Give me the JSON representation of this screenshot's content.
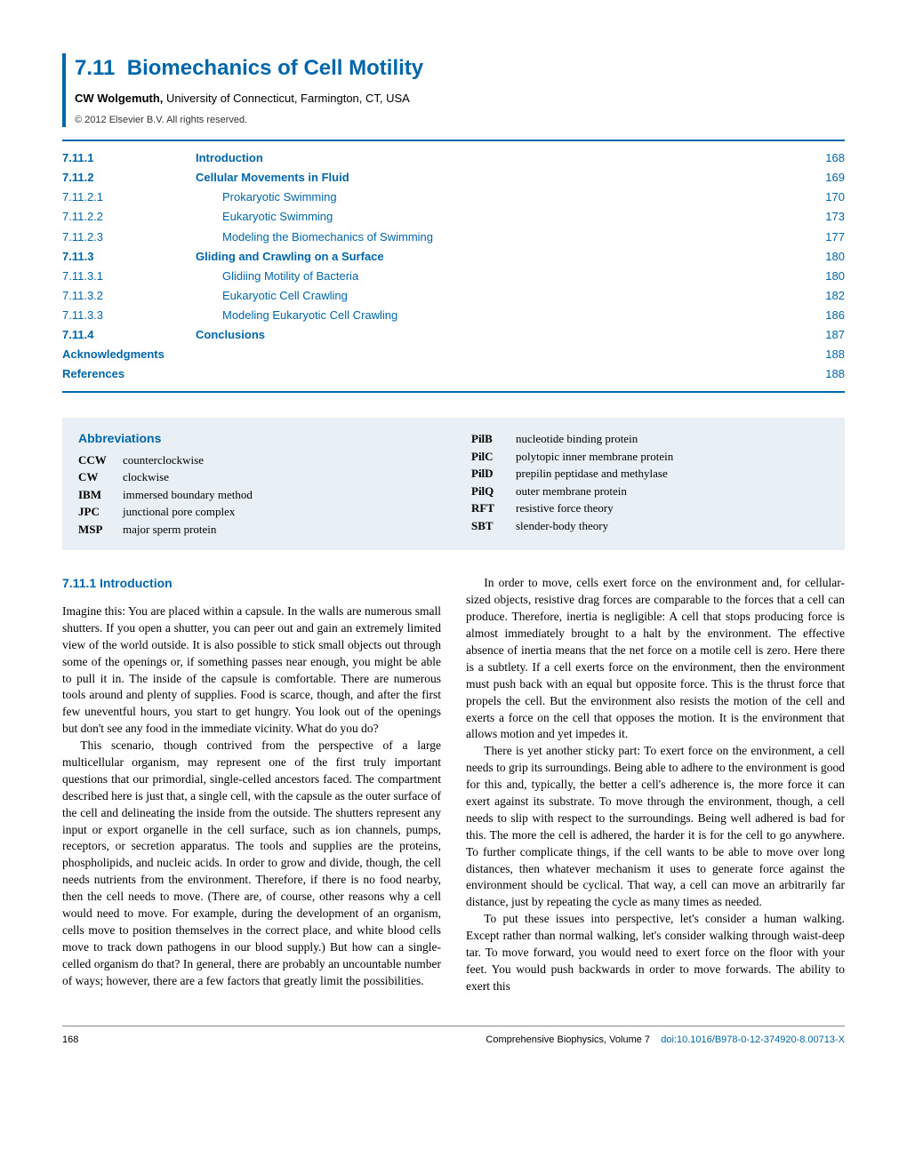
{
  "chapter": {
    "number": "7.11",
    "title": "Biomechanics of Cell Motility",
    "author_name": "CW Wolgemuth,",
    "author_affil": " University of Connecticut, Farmington, CT, USA",
    "copyright": "© 2012 Elsevier B.V. All rights reserved."
  },
  "toc": [
    {
      "num": "7.11.1",
      "text": "Introduction",
      "page": "168",
      "bold": true,
      "indent": 0
    },
    {
      "num": "7.11.2",
      "text": "Cellular Movements in Fluid",
      "page": "169",
      "bold": true,
      "indent": 0
    },
    {
      "num": "7.11.2.1",
      "text": "Prokaryotic Swimming",
      "page": "170",
      "bold": false,
      "indent": 1
    },
    {
      "num": "7.11.2.2",
      "text": "Eukaryotic Swimming",
      "page": "173",
      "bold": false,
      "indent": 1
    },
    {
      "num": "7.11.2.3",
      "text": "Modeling the Biomechanics of Swimming",
      "page": "177",
      "bold": false,
      "indent": 1
    },
    {
      "num": "7.11.3",
      "text": "Gliding and Crawling on a Surface",
      "page": "180",
      "bold": true,
      "indent": 0
    },
    {
      "num": "7.11.3.1",
      "text": "Glidiing Motility of Bacteria",
      "page": "180",
      "bold": false,
      "indent": 1
    },
    {
      "num": "7.11.3.2",
      "text": "Eukaryotic Cell Crawling",
      "page": "182",
      "bold": false,
      "indent": 1
    },
    {
      "num": "7.11.3.3",
      "text": "Modeling Eukaryotic Cell Crawling",
      "page": "186",
      "bold": false,
      "indent": 1
    },
    {
      "num": "7.11.4",
      "text": "Conclusions",
      "page": "187",
      "bold": true,
      "indent": 0
    },
    {
      "num": "Acknowledgments",
      "text": "",
      "page": "188",
      "bold": true,
      "indent": 0,
      "wide": true
    },
    {
      "num": "References",
      "text": "",
      "page": "188",
      "bold": true,
      "indent": 0,
      "wide": true
    }
  ],
  "abbrev": {
    "title": "Abbreviations",
    "left": [
      {
        "k": "CCW",
        "v": "counterclockwise"
      },
      {
        "k": "CW",
        "v": "clockwise"
      },
      {
        "k": "IBM",
        "v": "immersed boundary method"
      },
      {
        "k": "JPC",
        "v": "junctional pore complex"
      },
      {
        "k": "MSP",
        "v": "major sperm protein"
      }
    ],
    "right": [
      {
        "k": "PilB",
        "v": "nucleotide binding protein"
      },
      {
        "k": "PilC",
        "v": "polytopic inner membrane protein"
      },
      {
        "k": "PilD",
        "v": "prepilin peptidase and methylase"
      },
      {
        "k": "PilQ",
        "v": "outer membrane protein"
      },
      {
        "k": "RFT",
        "v": "resistive force theory"
      },
      {
        "k": "SBT",
        "v": "slender-body theory"
      }
    ]
  },
  "section": {
    "heading": "7.11.1   Introduction",
    "left": {
      "p1": "Imagine this: You are placed within a capsule. In the walls are numerous small shutters. If you open a shutter, you can peer out and gain an extremely limited view of the world outside. It is also possible to stick small objects out through some of the openings or, if something passes near enough, you might be able to pull it in. The inside of the capsule is comfortable. There are numerous tools around and plenty of supplies. Food is scarce, though, and after the first few uneventful hours, you start to get hungry. You look out of the openings but don't see any food in the immediate vicinity. What do you do?",
      "p2": "This scenario, though contrived from the perspective of a large multicellular organism, may represent one of the first truly important questions that our primordial, single-celled ancestors faced. The compartment described here is just that, a single cell, with the capsule as the outer surface of the cell and delineating the inside from the outside. The shutters represent any input or export organelle in the cell surface, such as ion channels, pumps, receptors, or secretion apparatus. The tools and supplies are the proteins, phospholipids, and nucleic acids. In order to grow and divide, though, the cell needs nutrients from the environment. Therefore, if there is no food nearby, then the cell needs to move. (There are, of course, other reasons why a cell would need to move. For example, during the development of an organism, cells move to position themselves in the correct place, and white blood cells move to track down pathogens in our blood supply.) But how can a single-celled organism do that? In general, there are probably an uncountable number of ways; however, there are a few factors that greatly limit the possibilities."
    },
    "right": {
      "p1": "In order to move, cells exert force on the environment and, for cellular-sized objects, resistive drag forces are comparable to the forces that a cell can produce. Therefore, inertia is negligible: A cell that stops producing force is almost immediately brought to a halt by the environment. The effective absence of inertia means that the net force on a motile cell is zero. Here there is a subtlety. If a cell exerts force on the environment, then the environment must push back with an equal but opposite force. This is the thrust force that propels the cell. But the environment also resists the motion of the cell and exerts a force on the cell that opposes the motion. It is the environment that allows motion and yet impedes it.",
      "p2": "There is yet another sticky part: To exert force on the environment, a cell needs to grip its surroundings. Being able to adhere to the environment is good for this and, typically, the better a cell's adherence is, the more force it can exert against its substrate. To move through the environment, though, a cell needs to slip with respect to the surroundings. Being well adhered is bad for this. The more the cell is adhered, the harder it is for the cell to go anywhere. To further complicate things, if the cell wants to be able to move over long distances, then whatever mechanism it uses to generate force against the environment should be cyclical. That way, a cell can move an arbitrarily far distance, just by repeating the cycle as many times as needed.",
      "p3": "To put these issues into perspective, let's consider a human walking. Except rather than normal walking, let's consider walking through waist-deep tar. To move forward, you would need to exert force on the floor with your feet. You would push backwards in order to move forwards. The ability to exert this"
    }
  },
  "footer": {
    "page": "168",
    "pub": "Comprehensive Biophysics, Volume 7",
    "doi": "doi:10.1016/B978-0-12-374920-8.00713-X"
  }
}
